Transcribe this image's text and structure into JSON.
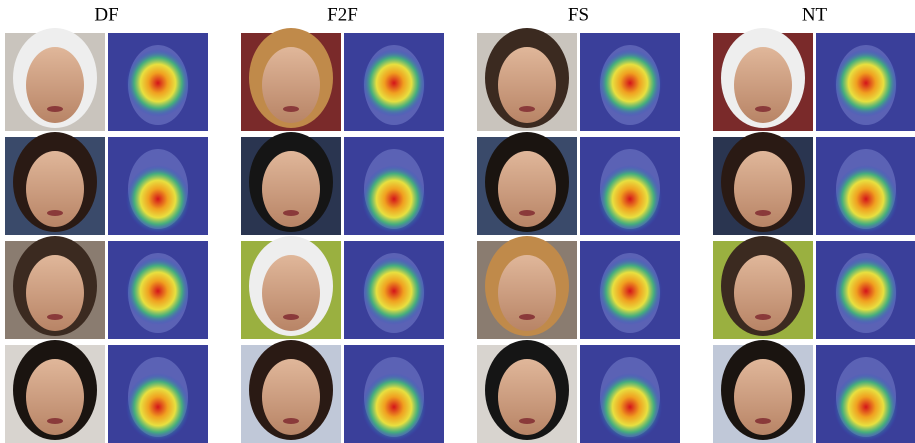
{
  "columns": [
    {
      "title": "DF"
    },
    {
      "title": "F2F"
    },
    {
      "title": "FS"
    },
    {
      "title": "NT"
    }
  ]
}
